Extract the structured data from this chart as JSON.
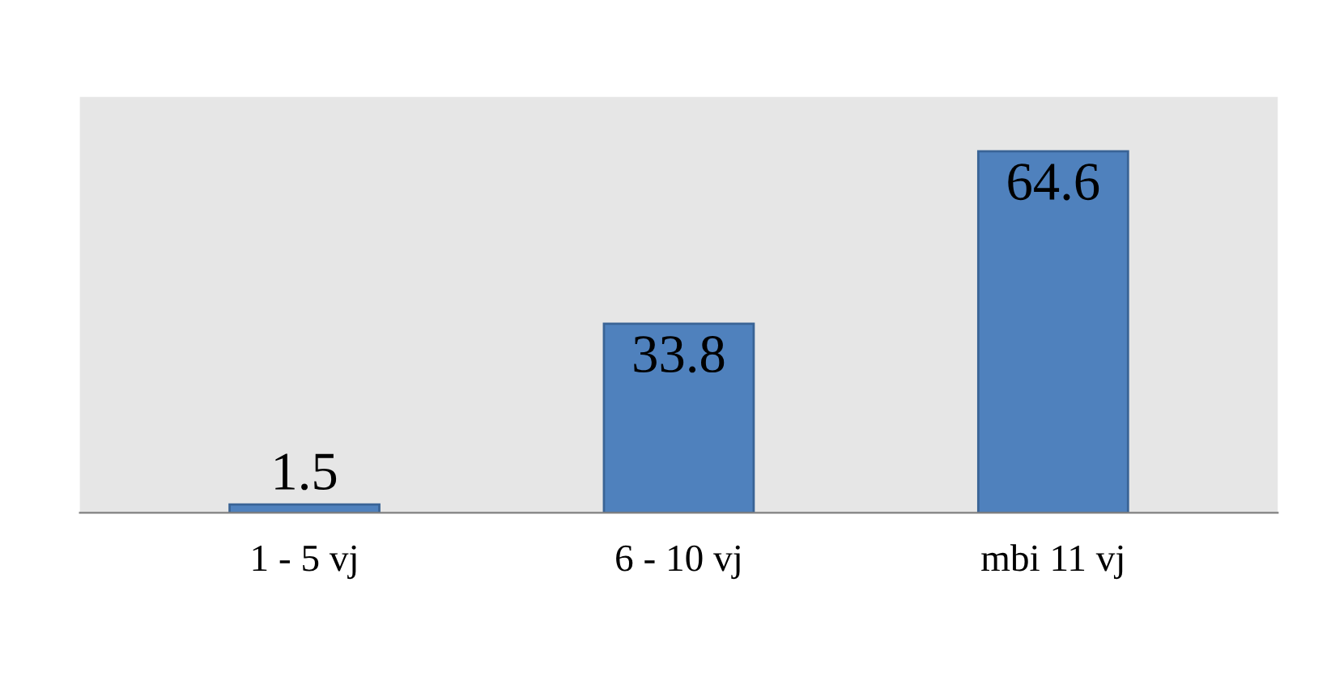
{
  "chart_data": {
    "type": "bar",
    "categories": [
      "1 - 5 vj",
      "6 - 10 vj",
      "mbi 11 vj"
    ],
    "values": [
      1.5,
      33.8,
      64.6
    ],
    "color": "#4f81bd",
    "data_labels": true,
    "grid": false,
    "legend": false
  }
}
